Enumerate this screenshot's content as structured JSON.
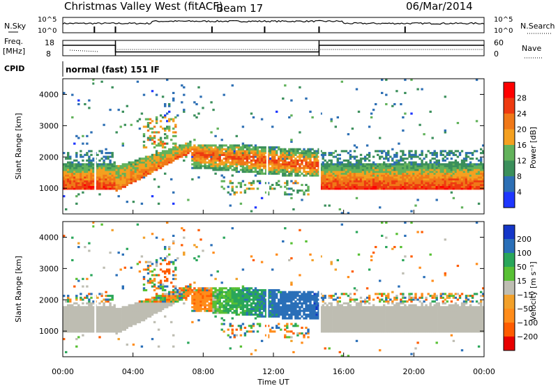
{
  "header": {
    "station": "Christmas Valley West (fitACF)",
    "beam": "Beam 17",
    "date": "06/Mar/2014"
  },
  "labels": {
    "nsky": "N.Sky",
    "nsearch": "N.Search",
    "freq": "Freq.",
    "freq_unit": "[MHz]",
    "nave": "Nave",
    "cpid": "CPID",
    "mode": "normal (fast) 151 IF",
    "pow_ylabel": "Slant Range [km]",
    "vel_ylabel": "Slant Range [km]",
    "pow_cbar_label": "Power [dB]",
    "vel_cbar_label": "Velocity [m s⁻¹]",
    "xlabel": "Time UT",
    "noise_left_top": "10^5",
    "noise_left_bottom": "10^0",
    "noise_right_top": "10^5",
    "noise_right_bottom": "10^0",
    "freq_top": "18",
    "freq_bottom": "8",
    "nave_top": "60",
    "nave_bottom": "0"
  },
  "colors": {
    "power_scale": [
      "#1e36ff",
      "#2d6fb4",
      "#3b8f5b",
      "#62b25b",
      "#f4a020",
      "#f07818",
      "#ee3a10",
      "#ff0000"
    ],
    "velocity_scale": [
      "#e80000",
      "#ff5c00",
      "#ff8c1a",
      "#f2a02a",
      "#bebdb2",
      "#58c034",
      "#2aa65a",
      "#2a6fb8",
      "#1436c8"
    ],
    "ground_scatter": "#bebdb2"
  },
  "chart_data": [
    {
      "type": "heatmap",
      "panel": "power",
      "xlabel": "Time UT",
      "ylabel": "Slant Range [km]",
      "x_ticks": [
        "00:00",
        "04:00",
        "08:00",
        "12:00",
        "16:00",
        "20:00",
        "00:00"
      ],
      "x_range_hours": [
        0,
        24
      ],
      "y_ticks": [
        "1000",
        "2000",
        "3000",
        "4000"
      ],
      "y_tick_values": [
        1000,
        2000,
        3000,
        4000
      ],
      "ylim": [
        180,
        4500
      ],
      "colorbar": {
        "label": "Power [dB]",
        "ticks": [
          "4",
          "8",
          "12",
          "16",
          "20",
          "24",
          "28"
        ],
        "range": [
          0,
          30
        ]
      },
      "features": [
        {
          "name": "band",
          "t_start": 0.0,
          "t_end": 3.0,
          "r_min": 1000,
          "r_max": 1800,
          "level": "high"
        },
        {
          "name": "rising_band",
          "t_start": 3.0,
          "t_end": 7.3,
          "r_min_start": 880,
          "r_min_end": 2200,
          "level": "medium"
        },
        {
          "name": "midday",
          "t_start": 7.0,
          "t_end": 14.5,
          "r_min": 1400,
          "r_max": 2400,
          "level": "medium"
        },
        {
          "name": "afternoon_band",
          "t_start": 15.0,
          "t_end": 24.0,
          "r_min": 950,
          "r_max": 1800,
          "level": "high"
        }
      ]
    },
    {
      "type": "heatmap",
      "panel": "velocity",
      "xlabel": "Time UT",
      "ylabel": "Slant Range [km]",
      "x_ticks": [
        "00:00",
        "04:00",
        "08:00",
        "12:00",
        "16:00",
        "20:00",
        "00:00"
      ],
      "y_ticks": [
        "1000",
        "2000",
        "3000",
        "4000"
      ],
      "y_tick_values": [
        1000,
        2000,
        3000,
        4000
      ],
      "ylim": [
        180,
        4500
      ],
      "colorbar": {
        "label": "Velocity [m s⁻¹]",
        "ticks": [
          "200",
          "100",
          "50",
          "15",
          "−15",
          "−50",
          "−100",
          "−200"
        ],
        "range": [
          -250,
          250
        ]
      },
      "features": [
        {
          "name": "ground_scatter",
          "t_start": 0.0,
          "t_end": 7.3,
          "r_min": 1000,
          "r_max": 1800,
          "velocity": "low"
        },
        {
          "name": "ionospheric_midday",
          "t_start": 8.5,
          "t_end": 14.5,
          "r_min": 1500,
          "r_max": 2400,
          "velocity": "positive"
        },
        {
          "name": "ground_scatter_pm",
          "t_start": 15.0,
          "t_end": 24.0,
          "r_min": 950,
          "r_max": 1800,
          "velocity": "low"
        }
      ]
    }
  ],
  "summary_panels": {
    "noise_range": [
      0,
      5
    ],
    "freq_range_mhz": [
      8,
      18
    ],
    "nave_range": [
      0,
      60
    ],
    "freq_segments": [
      {
        "t_start": 0.0,
        "t_end": 1.8,
        "mhz": 14.8
      },
      {
        "t_start": 1.8,
        "t_end": 3.0,
        "mhz": 14.8
      },
      {
        "t_start": 3.0,
        "t_end": 14.6,
        "mhz": 10.5
      },
      {
        "t_start": 14.6,
        "t_end": 24.0,
        "mhz": 14.8
      }
    ]
  }
}
